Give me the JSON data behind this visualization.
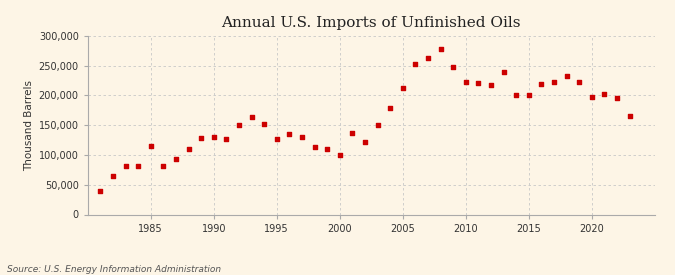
{
  "title": "Annual U.S. Imports of Unfinished Oils",
  "ylabel": "Thousand Barrels",
  "source_text": "Source: U.S. Energy Information Administration",
  "background_color": "#fdf5e6",
  "marker_color": "#cc0000",
  "years": [
    1981,
    1982,
    1983,
    1984,
    1985,
    1986,
    1987,
    1988,
    1989,
    1990,
    1991,
    1992,
    1993,
    1994,
    1995,
    1996,
    1997,
    1998,
    1999,
    2000,
    2001,
    2002,
    2003,
    2004,
    2005,
    2006,
    2007,
    2008,
    2009,
    2010,
    2011,
    2012,
    2013,
    2014,
    2015,
    2016,
    2017,
    2018,
    2019,
    2020,
    2021,
    2022,
    2023
  ],
  "values": [
    40000,
    65000,
    82000,
    82000,
    115000,
    82000,
    93000,
    110000,
    128000,
    130000,
    127000,
    150000,
    163000,
    152000,
    127000,
    135000,
    130000,
    113000,
    110000,
    100000,
    137000,
    122000,
    150000,
    178000,
    212000,
    252000,
    262000,
    278000,
    247000,
    222000,
    220000,
    218000,
    240000,
    200000,
    200000,
    219000,
    222000,
    232000,
    222000,
    197000,
    203000,
    196000,
    165000
  ],
  "xlim": [
    1980,
    2025
  ],
  "ylim": [
    0,
    300000
  ],
  "yticks": [
    0,
    50000,
    100000,
    150000,
    200000,
    250000,
    300000
  ],
  "xticks": [
    1985,
    1990,
    1995,
    2000,
    2005,
    2010,
    2015,
    2020
  ],
  "grid_color": "#c8c8c8",
  "title_fontsize": 11,
  "label_fontsize": 7.5,
  "tick_fontsize": 7,
  "source_fontsize": 6.5
}
